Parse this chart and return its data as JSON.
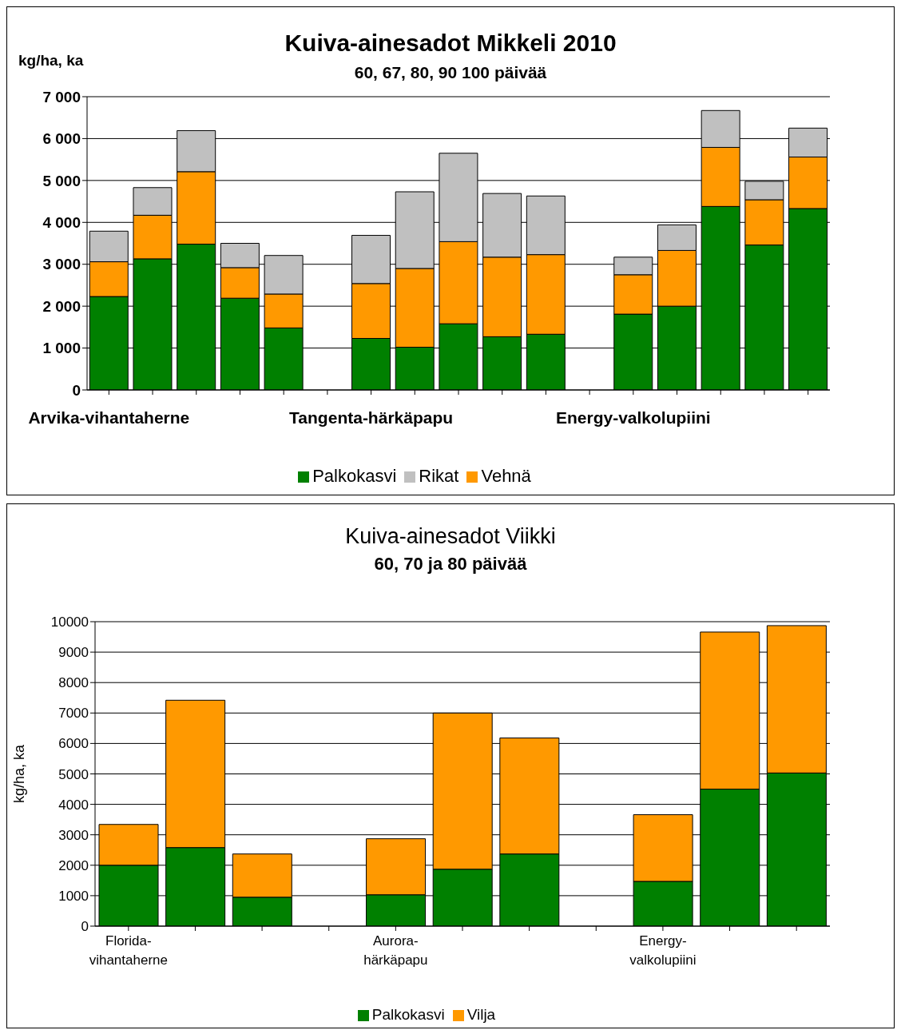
{
  "chart_data": [
    {
      "type": "bar",
      "title": "Kuiva-ainesadot Mikkeli 2010",
      "subtitle": "60, 67, 80, 90 100 päivää",
      "ylabel": "kg/ha, ka",
      "stacked": true,
      "grid": "y",
      "legend": "bottom",
      "categories": [
        "Arvika-vihantaherne",
        null,
        null,
        null,
        null,
        null,
        "Tangenta-härkäpapu",
        null,
        null,
        null,
        null,
        null,
        "Energy-valkolupiini",
        null,
        null,
        null,
        null
      ],
      "ylim": [
        0,
        7000
      ],
      "yticks": [
        0,
        {
          "value": 1000,
          "label": "1 000"
        },
        {
          "value": 2000,
          "label": "2 000"
        },
        {
          "value": 3000,
          "label": "3 000"
        },
        {
          "value": 4000,
          "label": "4 000"
        },
        {
          "value": 5000,
          "label": "5 000"
        },
        {
          "value": 6000,
          "label": "6 000"
        },
        {
          "value": 7000,
          "label": "7 000"
        }
      ],
      "series": [
        {
          "name": "Palkokasvi",
          "color": "#008000",
          "values": [
            2230,
            3130,
            3480,
            2190,
            1480,
            null,
            1230,
            1020,
            1580,
            1270,
            1330,
            null,
            1810,
            2000,
            4380,
            3460,
            4330
          ]
        },
        {
          "name": "Vehnä",
          "color": "#ff9900",
          "values": [
            830,
            1040,
            1730,
            730,
            810,
            null,
            1310,
            1880,
            1960,
            1900,
            1900,
            null,
            940,
            1330,
            1410,
            1080,
            1230
          ]
        },
        {
          "name": "Rikat",
          "color": "#c0c0c0",
          "values": [
            730,
            660,
            980,
            580,
            920,
            null,
            1150,
            1830,
            2110,
            1520,
            1400,
            null,
            420,
            610,
            880,
            440,
            690
          ]
        }
      ]
    },
    {
      "type": "bar",
      "title": "Kuiva-ainesadot Viikki",
      "subtitle": "60, 70 ja 80 päivää",
      "ylabel": "kg/ha, ka",
      "stacked": true,
      "grid": "y",
      "legend": "bottom",
      "categories": [
        "Florida-\nvihantaherne",
        null,
        null,
        null,
        "Aurora-\nhärkäpapu",
        null,
        null,
        null,
        "Energy-\nvalkolupiini",
        null,
        null
      ],
      "ylim": [
        0,
        10000
      ],
      "yticks": [
        0,
        1000,
        2000,
        3000,
        4000,
        5000,
        6000,
        7000,
        8000,
        9000,
        10000
      ],
      "series": [
        {
          "name": "Palkokasvi",
          "color": "#008000",
          "values": [
            2000,
            2580,
            950,
            null,
            1030,
            1870,
            2370,
            null,
            1470,
            4500,
            5030
          ]
        },
        {
          "name": "Vilja",
          "color": "#ff9900",
          "values": [
            1340,
            4840,
            1420,
            null,
            1840,
            5130,
            3810,
            null,
            2190,
            5160,
            4840
          ]
        }
      ]
    }
  ]
}
